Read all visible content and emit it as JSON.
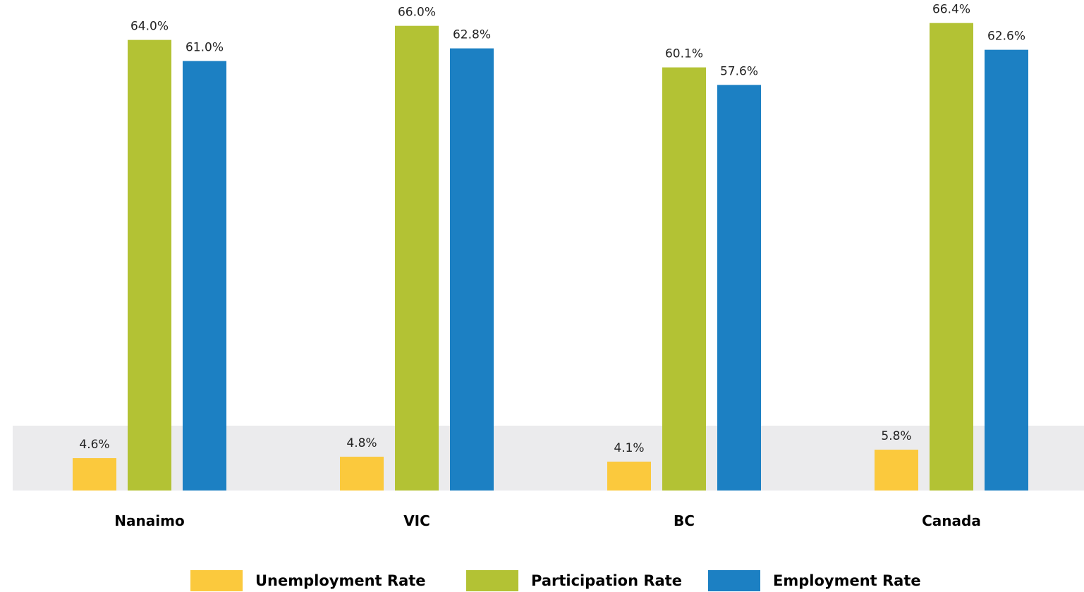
{
  "chart_data": {
    "type": "bar",
    "title": "",
    "xlabel": "",
    "ylabel": "",
    "categories": [
      "Nanaimo",
      "VIC",
      "BC",
      "Canada"
    ],
    "series": [
      {
        "name": "Unemployment Rate",
        "color": "#FBC93D",
        "values": [
          4.6,
          4.8,
          4.1,
          5.8
        ],
        "labels": [
          "4.6%",
          "4.8%",
          "4.1%",
          "5.8%"
        ]
      },
      {
        "name": "Participation Rate",
        "color": "#B3C234",
        "values": [
          64.0,
          66.0,
          60.1,
          66.4
        ],
        "labels": [
          "64.0%",
          "66.0%",
          "60.1%",
          "66.4%"
        ]
      },
      {
        "name": "Employment Rate",
        "color": "#1C80C3",
        "values": [
          61.0,
          62.8,
          57.6,
          62.6
        ],
        "labels": [
          "61.0%",
          "62.8%",
          "57.6%",
          "62.6%"
        ]
      }
    ],
    "baseline_band_color": "#EBEBED",
    "legend_position": "bottom-center",
    "grid": false
  }
}
